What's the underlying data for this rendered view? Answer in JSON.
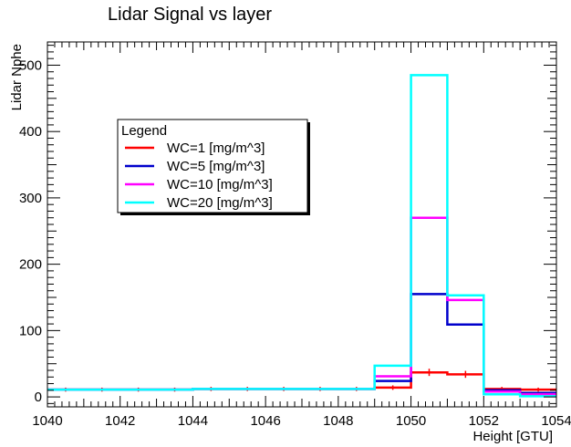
{
  "chart_data": {
    "type": "line",
    "step": true,
    "title": "Lidar Signal vs layer",
    "xlabel": "Height [GTU]",
    "ylabel": "Lidar Nphe",
    "xlim": [
      1040,
      1054
    ],
    "ylim": [
      -15,
      535
    ],
    "x_ticks": [
      1040,
      1042,
      1044,
      1046,
      1048,
      1050,
      1052,
      1054
    ],
    "y_ticks": [
      0,
      100,
      200,
      300,
      400,
      500
    ],
    "grid": false,
    "bin_edges": [
      1040,
      1041,
      1042,
      1043,
      1044,
      1045,
      1046,
      1047,
      1048,
      1049,
      1050,
      1051,
      1052,
      1053,
      1054
    ],
    "legend": {
      "title": "Legend",
      "position": "upper-left"
    },
    "series": [
      {
        "name": "WC=1 [mg/m^3]",
        "color": "#ff0000",
        "error_bars": true,
        "values": [
          11,
          11,
          11,
          11,
          12,
          12,
          12,
          12,
          12,
          14,
          37,
          34,
          12,
          11
        ]
      },
      {
        "name": "WC=5 [mg/m^3]",
        "color": "#0000cc",
        "error_bars": false,
        "values": [
          11,
          11,
          11,
          11,
          12,
          12,
          12,
          12,
          12,
          24,
          155,
          109,
          10,
          6
        ]
      },
      {
        "name": "WC=10 [mg/m^3]",
        "color": "#ff00ff",
        "error_bars": false,
        "values": [
          11,
          11,
          11,
          11,
          12,
          12,
          12,
          12,
          12,
          31,
          270,
          146,
          8,
          4
        ]
      },
      {
        "name": "WC=20 [mg/m^3]",
        "color": "#00ffff",
        "error_bars": false,
        "values": [
          11,
          11,
          11,
          11,
          12,
          12,
          12,
          12,
          12,
          47,
          485,
          153,
          4,
          1
        ]
      }
    ]
  }
}
